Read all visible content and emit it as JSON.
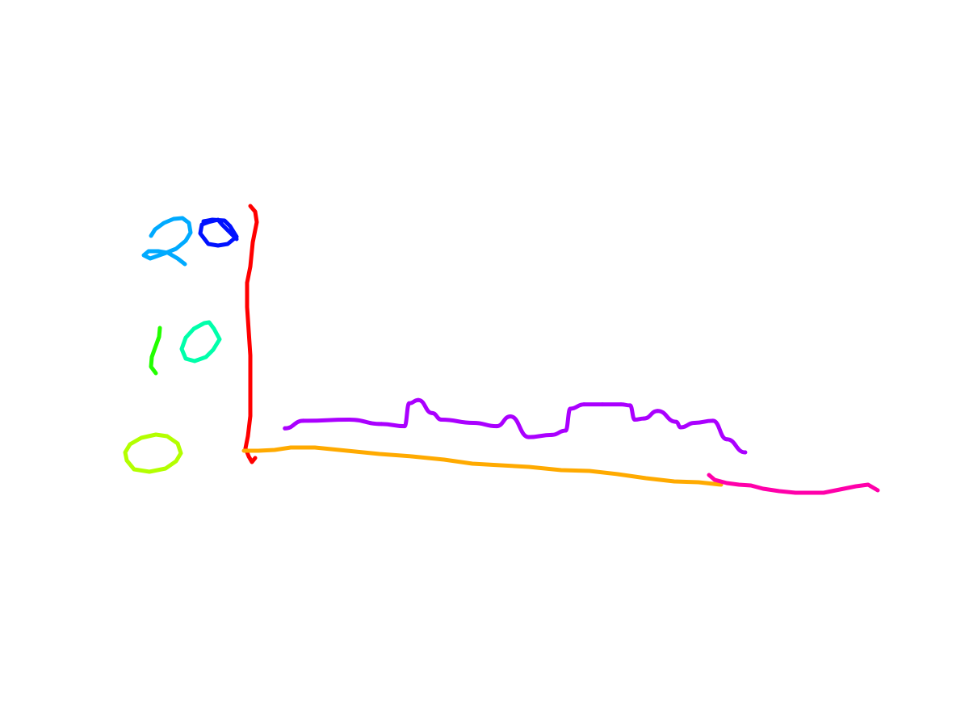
{
  "chart_data": {
    "type": "line",
    "style": "hand-drawn sketch",
    "ylim": [
      0,
      20
    ],
    "grid": false,
    "y_ticks": [
      {
        "value": 0,
        "label": "0",
        "colors": [
          "#b3ff00"
        ]
      },
      {
        "value": 10,
        "label": "10",
        "colors": [
          "#22ff00",
          "#00ffaa"
        ]
      },
      {
        "value": 20,
        "label": "20",
        "colors": [
          "#00aaff",
          "#0011ff"
        ]
      }
    ],
    "series": [
      {
        "color": "#aa00ff",
        "points": [
          {
            "x": 0.04,
            "y": 2.2
          },
          {
            "x": 0.08,
            "y": 2.9
          },
          {
            "x": 0.18,
            "y": 3.0
          },
          {
            "x": 0.25,
            "y": 2.6
          },
          {
            "x": 0.3,
            "y": 2.4
          },
          {
            "x": 0.31,
            "y": 4.5
          },
          {
            "x": 0.33,
            "y": 4.8
          },
          {
            "x": 0.36,
            "y": 3.6
          },
          {
            "x": 0.38,
            "y": 3.0
          },
          {
            "x": 0.45,
            "y": 2.7
          },
          {
            "x": 0.5,
            "y": 2.4
          },
          {
            "x": 0.53,
            "y": 3.3
          },
          {
            "x": 0.57,
            "y": 1.4
          },
          {
            "x": 0.62,
            "y": 1.6
          },
          {
            "x": 0.65,
            "y": 2.0
          },
          {
            "x": 0.66,
            "y": 4.0
          },
          {
            "x": 0.69,
            "y": 4.4
          },
          {
            "x": 0.73,
            "y": 4.4
          },
          {
            "x": 0.77,
            "y": 4.4
          },
          {
            "x": 0.79,
            "y": 4.3
          },
          {
            "x": 0.8,
            "y": 3.0
          },
          {
            "x": 0.82,
            "y": 3.1
          },
          {
            "x": 0.85,
            "y": 3.8
          },
          {
            "x": 0.89,
            "y": 2.8
          },
          {
            "x": 0.9,
            "y": 2.3
          },
          {
            "x": 0.93,
            "y": 2.7
          },
          {
            "x": 0.97,
            "y": 2.9
          },
          {
            "x": 1.0,
            "y": 1.2
          },
          {
            "x": 1.04,
            "y": 0.0
          }
        ]
      }
    ]
  },
  "colors": {
    "y_axis": "#ff0000",
    "x_axis": "#ffaa00",
    "x_axis_extension": "#ff00aa",
    "series": "#aa00ff"
  }
}
